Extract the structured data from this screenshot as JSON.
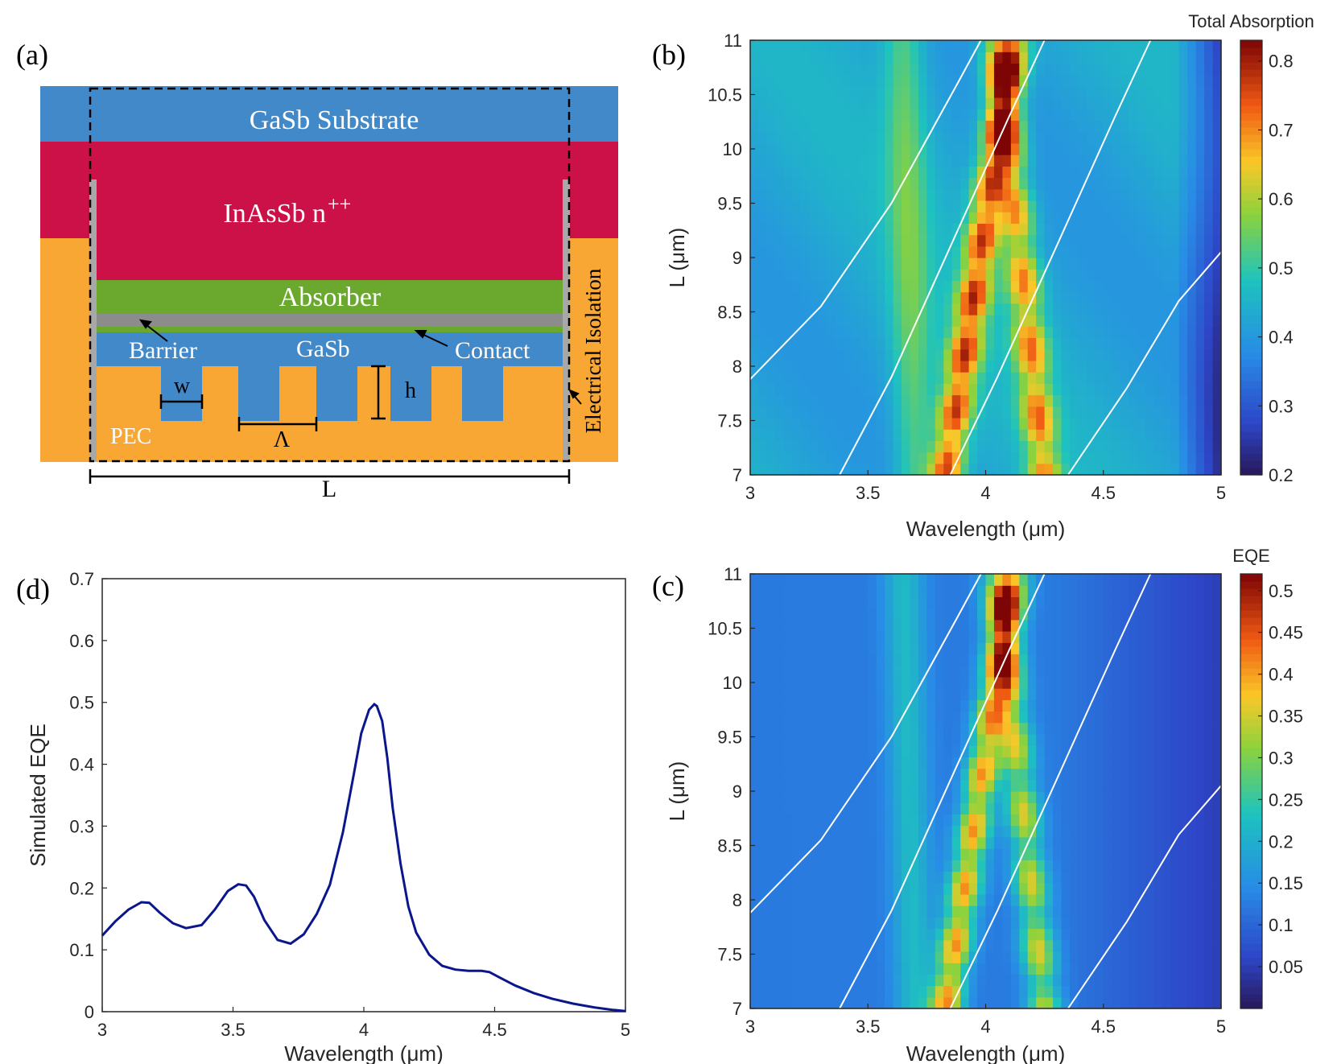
{
  "panels": {
    "a": {
      "label": "(a)",
      "layers": {
        "substrate": "GaSb Substrate",
        "contact_layer": "InAsSb n",
        "contact_sup": "++",
        "absorber": "Absorber",
        "barrier": "Barrier",
        "gasb": "GaSb",
        "contact": "Contact",
        "pec": "PEC",
        "isolation": "Electrical Isolation"
      },
      "dims": {
        "w": "w",
        "h": "h",
        "period": "Λ",
        "length": "L"
      },
      "colors": {
        "substrate": "#4289c9",
        "inassb": "#cc1048",
        "absorber": "#6aa82e",
        "barrier": "#8c8c8c",
        "pec": "#f8a735",
        "gasb": "#4289c9",
        "isolation": "#a8a8a8"
      }
    },
    "b": {
      "label": "(b)"
    },
    "c": {
      "label": "(c)"
    },
    "d": {
      "label": "(d)"
    }
  },
  "chart_data": [
    {
      "panel": "b",
      "type": "heatmap",
      "xlabel": "Wavelength (μm)",
      "ylabel": "L (μm)",
      "xlim": [
        3,
        5
      ],
      "ylim": [
        7,
        11
      ],
      "xticks": [
        "3",
        "3.5",
        "4",
        "4.5",
        "5"
      ],
      "yticks": [
        "7",
        "7.5",
        "8",
        "8.5",
        "9",
        "9.5",
        "10",
        "10.5",
        "11"
      ],
      "colorbar_label": "Total Absorption",
      "clim": [
        0.2,
        0.83
      ],
      "colorbar_ticks": [
        "0.2",
        "0.3",
        "0.4",
        "0.5",
        "0.6",
        "0.7",
        "0.8"
      ],
      "colormap": "jet-like",
      "resonance_ridges": [
        {
          "x_at_L7": 3.83,
          "x_at_L11": 4.12
        },
        {
          "x_at_L7": 4.25,
          "x_at_L11": 4.05
        },
        {
          "x_at_L7": 3.72,
          "x_at_L11": 3.65
        }
      ],
      "overlay_curves": [
        {
          "points": [
            [
              3.0,
              7.88
            ],
            [
              3.3,
              8.55
            ],
            [
              3.6,
              9.5
            ],
            [
              3.88,
              10.6
            ],
            [
              3.98,
              11.0
            ]
          ]
        },
        {
          "points": [
            [
              3.38,
              7.0
            ],
            [
              3.6,
              7.9
            ],
            [
              3.85,
              9.1
            ],
            [
              4.1,
              10.3
            ],
            [
              4.25,
              11.0
            ]
          ]
        },
        {
          "points": [
            [
              3.85,
              7.0
            ],
            [
              4.05,
              7.9
            ],
            [
              4.3,
              9.1
            ],
            [
              4.55,
              10.3
            ],
            [
              4.7,
              11.0
            ]
          ]
        },
        {
          "points": [
            [
              4.35,
              7.0
            ],
            [
              4.6,
              7.8
            ],
            [
              4.82,
              8.6
            ],
            [
              5.0,
              9.05
            ]
          ]
        }
      ]
    },
    {
      "panel": "c",
      "type": "heatmap",
      "xlabel": "Wavelength (μm)",
      "ylabel": "L (μm)",
      "xlim": [
        3,
        5
      ],
      "ylim": [
        7,
        11
      ],
      "xticks": [
        "3",
        "3.5",
        "4",
        "4.5",
        "5"
      ],
      "yticks": [
        "7",
        "7.5",
        "8",
        "8.5",
        "9",
        "9.5",
        "10",
        "10.5",
        "11"
      ],
      "colorbar_label": "EQE",
      "clim": [
        0.0,
        0.52
      ],
      "colorbar_ticks": [
        "0.05",
        "0.1",
        "0.15",
        "0.2",
        "0.25",
        "0.3",
        "0.35",
        "0.4",
        "0.45",
        "0.5"
      ],
      "colormap": "jet-like"
    },
    {
      "panel": "d",
      "type": "line",
      "xlabel": "Wavelength (μm)",
      "ylabel": "Simulated EQE",
      "xlim": [
        3,
        5
      ],
      "ylim": [
        0,
        0.7
      ],
      "xticks": [
        "3",
        "3.5",
        "4",
        "4.5",
        "5"
      ],
      "yticks": [
        "0",
        "0.1",
        "0.2",
        "0.3",
        "0.4",
        "0.5",
        "0.6",
        "0.7"
      ],
      "series": [
        {
          "name": "Simulated EQE",
          "color": "#0a168c",
          "x": [
            3.0,
            3.05,
            3.1,
            3.15,
            3.18,
            3.22,
            3.27,
            3.32,
            3.38,
            3.43,
            3.48,
            3.52,
            3.55,
            3.58,
            3.62,
            3.67,
            3.72,
            3.77,
            3.82,
            3.87,
            3.92,
            3.96,
            3.99,
            4.02,
            4.04,
            4.05,
            4.07,
            4.09,
            4.11,
            4.14,
            4.17,
            4.2,
            4.25,
            4.3,
            4.35,
            4.4,
            4.45,
            4.48,
            4.52,
            4.58,
            4.65,
            4.72,
            4.8,
            4.88,
            4.95,
            5.0
          ],
          "values": [
            0.123,
            0.146,
            0.165,
            0.177,
            0.176,
            0.16,
            0.143,
            0.135,
            0.14,
            0.165,
            0.195,
            0.206,
            0.204,
            0.186,
            0.148,
            0.116,
            0.11,
            0.125,
            0.158,
            0.205,
            0.29,
            0.38,
            0.45,
            0.488,
            0.497,
            0.494,
            0.47,
            0.41,
            0.33,
            0.24,
            0.17,
            0.128,
            0.092,
            0.074,
            0.068,
            0.066,
            0.066,
            0.064,
            0.055,
            0.042,
            0.03,
            0.021,
            0.013,
            0.007,
            0.003,
            0.001
          ]
        }
      ]
    }
  ]
}
